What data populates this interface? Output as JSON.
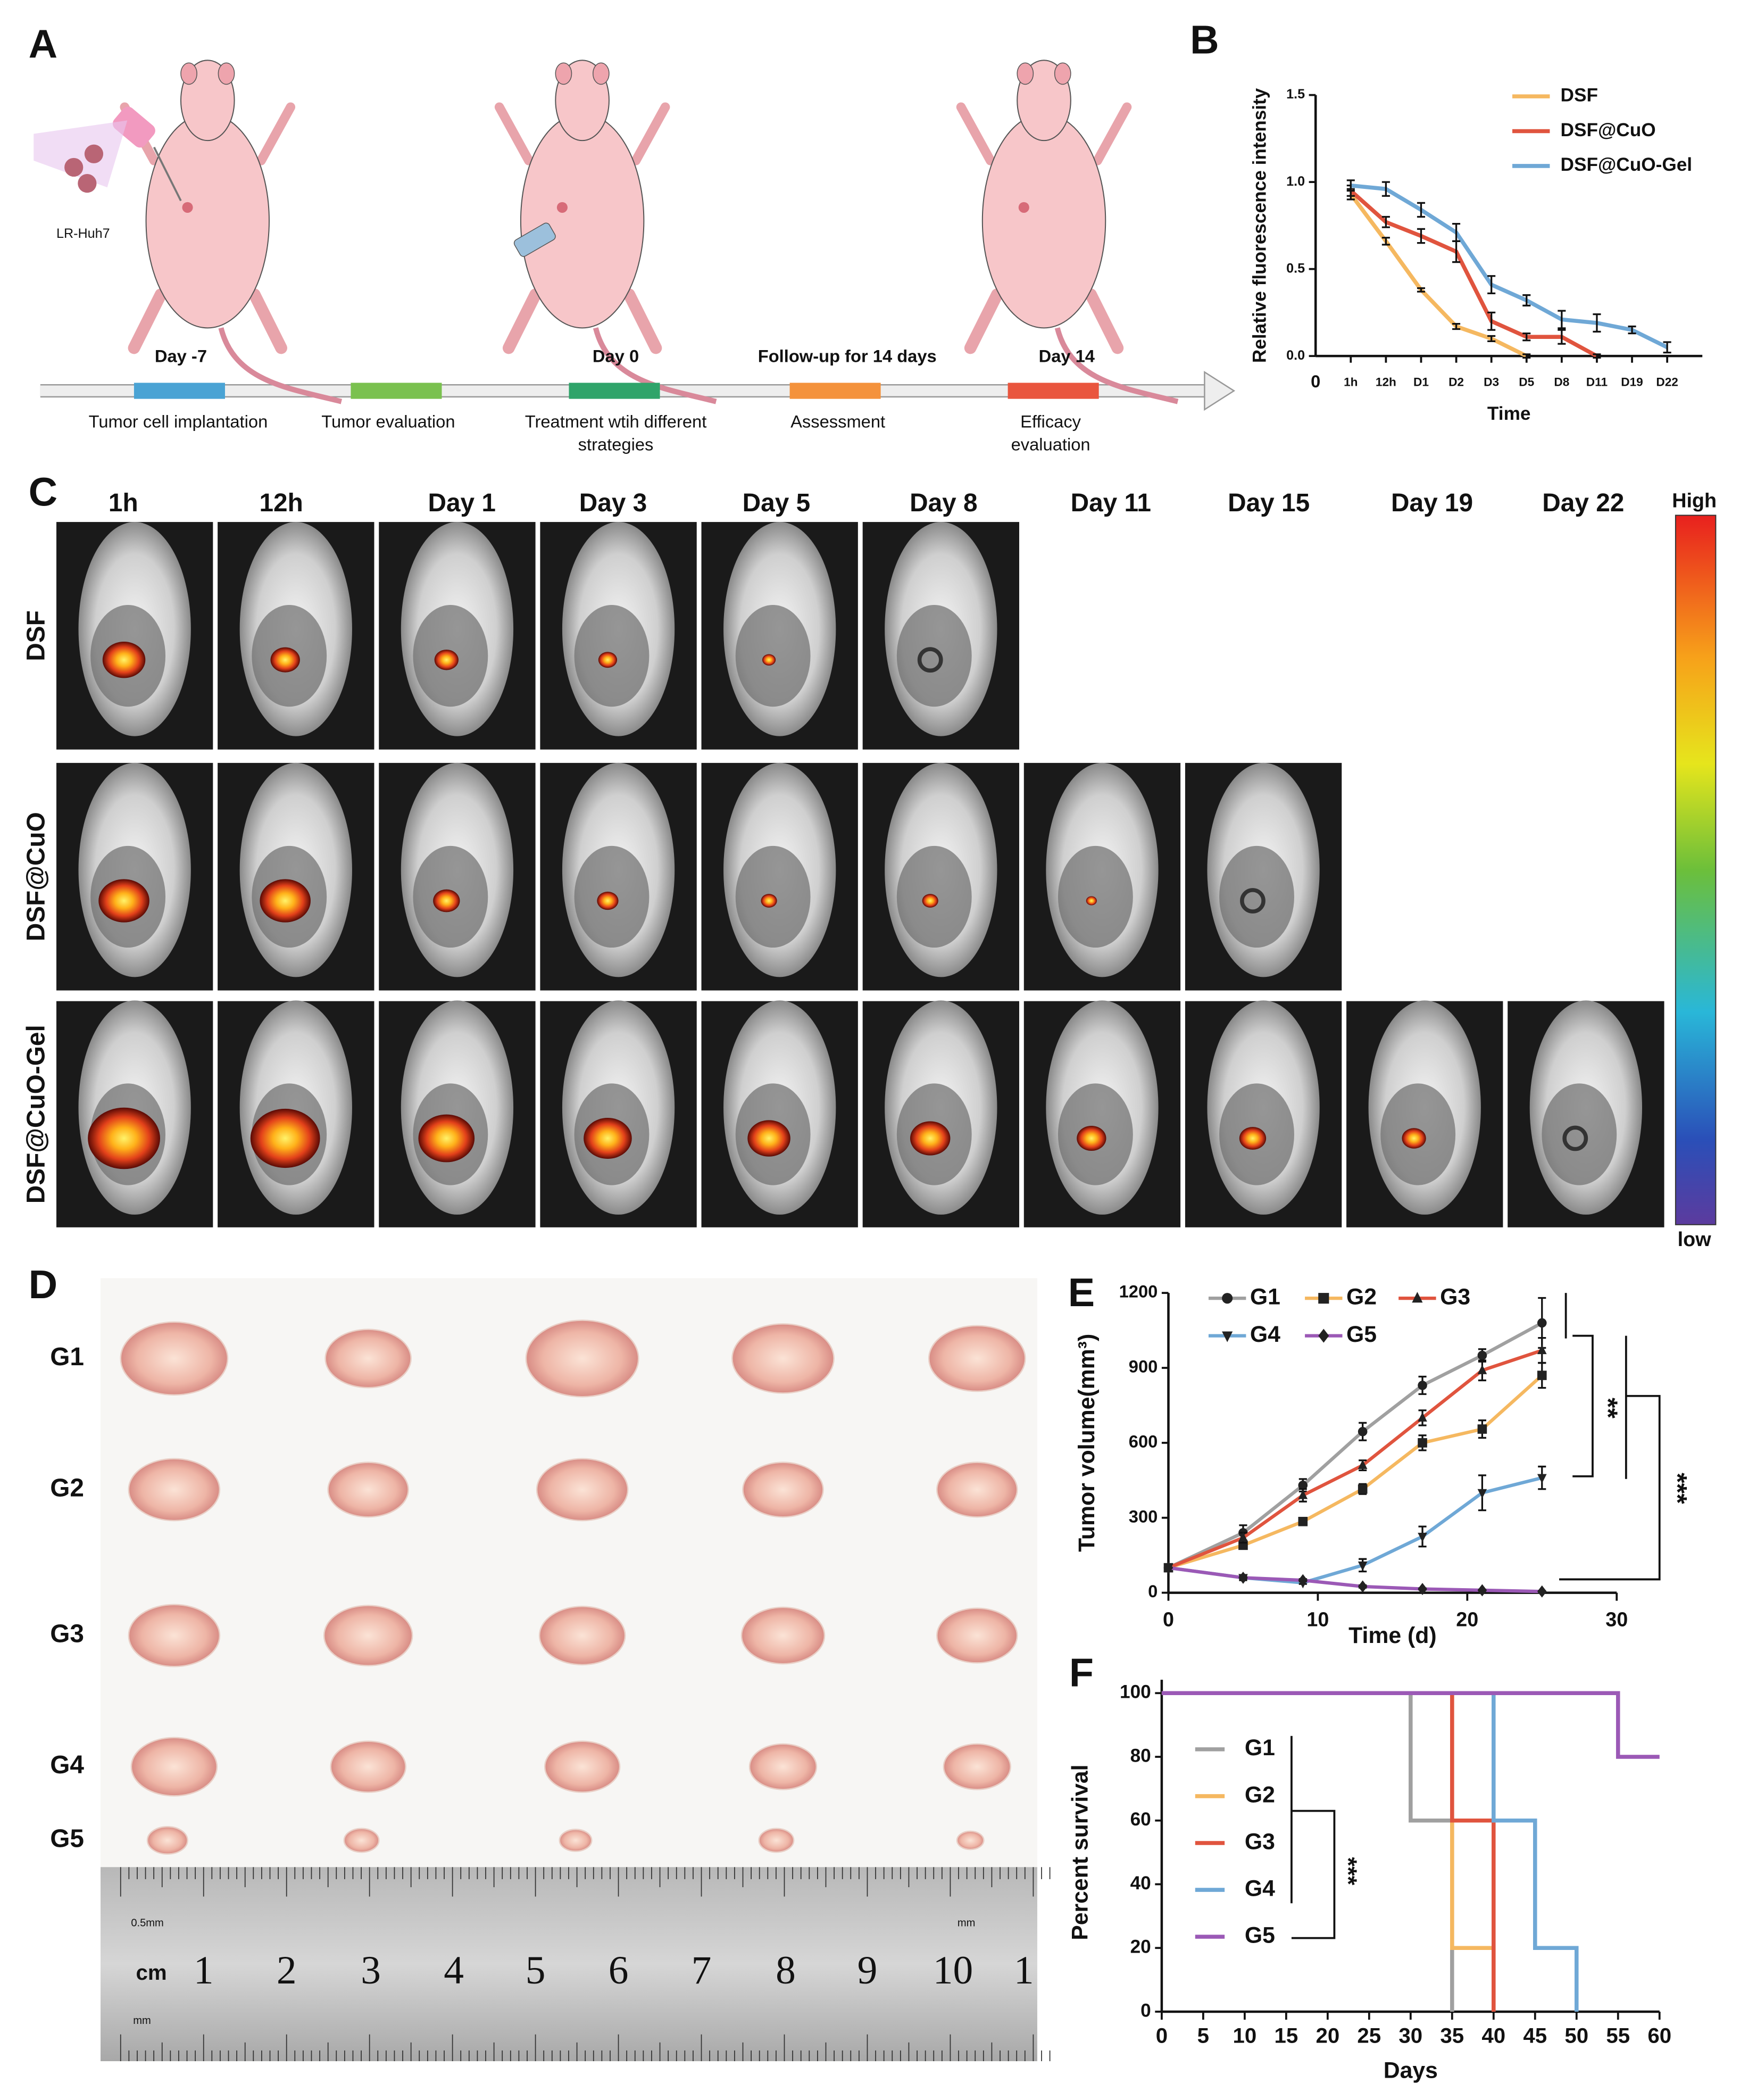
{
  "panel_labels": [
    "A",
    "B",
    "C",
    "D",
    "E",
    "F"
  ],
  "panel_a": {
    "cell_line": "LR-Huh7",
    "milestones": [
      "Day -7",
      "Day 0",
      "Follow-up for 14 days",
      "Day 14"
    ],
    "steps": [
      [
        "Tumor cell implantation"
      ],
      [
        "Tumor evaluation"
      ],
      [
        "Treatment wtih different",
        "strategies"
      ],
      [
        "Assessment"
      ],
      [
        "Efficacy",
        "evaluation"
      ]
    ]
  },
  "panel_c": {
    "timepoints": [
      "1h",
      "12h",
      "Day 1",
      "Day 3",
      "Day 5",
      "Day 8",
      "Day 11",
      "Day 15",
      "Day 19",
      "Day 22"
    ],
    "groups": [
      "DSF",
      "DSF@CuO",
      "DSF@CuO-Gel"
    ],
    "scale_high": "High",
    "scale_low": "low"
  },
  "panel_d": {
    "groups": [
      "G1",
      "G2",
      "G3",
      "G4",
      "G5"
    ],
    "ruler_unit": "cm",
    "ruler_numbers": [
      "1",
      "2",
      "3",
      "4",
      "5",
      "6",
      "7",
      "8",
      "9",
      "10",
      "1"
    ],
    "ruler_marks": [
      "0.5mm",
      "mm",
      "mm"
    ]
  },
  "chart_data": [
    {
      "type": "line",
      "xlabel": "Time",
      "ylabel": "Relative fluorescence intensity",
      "categories": [
        "0",
        "1h",
        "12h",
        "D1",
        "D2",
        "D3",
        "D5",
        "D8",
        "D11",
        "D19",
        "D22"
      ],
      "ylim": [
        0,
        1.5
      ],
      "yticks": [
        {
          "value": 0,
          "label": "0.0"
        },
        0.5,
        {
          "value": 1,
          "label": "1.0"
        },
        1.5
      ],
      "legend": "upper right",
      "series": [
        {
          "name": "DSF",
          "color": "#f5b860",
          "values": [
            null,
            0.93,
            0.66,
            0.38,
            0.17,
            0.1,
            0.0,
            null,
            null,
            null,
            null
          ],
          "errors": [
            null,
            0.03,
            0.02,
            0.01,
            0.015,
            0.015,
            0.01,
            null,
            null,
            null,
            null
          ]
        },
        {
          "name": "DSF@CuO",
          "color": "#e0543e",
          "values": [
            null,
            0.95,
            0.77,
            0.69,
            0.6,
            0.2,
            0.11,
            0.11,
            0.0,
            null,
            null
          ],
          "errors": [
            null,
            0.03,
            0.03,
            0.04,
            0.06,
            0.05,
            0.02,
            0.04,
            0.01,
            null,
            null
          ]
        },
        {
          "name": "DSF@CuO-Gel",
          "color": "#6fa8d6",
          "values": [
            null,
            0.98,
            0.96,
            0.84,
            0.71,
            0.41,
            0.32,
            0.21,
            0.19,
            0.15,
            0.05
          ],
          "errors": [
            null,
            0.03,
            0.04,
            0.04,
            0.05,
            0.05,
            0.03,
            0.05,
            0.05,
            0.02,
            0.03
          ]
        }
      ]
    },
    {
      "type": "line",
      "xlabel": "Time (d)",
      "ylabel": "Tumor volume(mm³)",
      "xlim": [
        0,
        30
      ],
      "ylim": [
        0,
        1200
      ],
      "xticks": [
        0,
        10,
        20,
        30
      ],
      "yticks": [
        0,
        300,
        600,
        900,
        1200
      ],
      "legend": "upper left",
      "marker_color": "#222",
      "annotations": [
        "**",
        "***"
      ],
      "x": [
        0,
        5,
        9,
        13,
        17,
        21,
        25
      ],
      "series": [
        {
          "name": "G1",
          "color": "#a0a0a0",
          "marker": "circle",
          "values": [
            100,
            240,
            430,
            645,
            830,
            950,
            1080
          ],
          "errors": [
            0,
            30,
            25,
            35,
            35,
            25,
            100
          ]
        },
        {
          "name": "G2",
          "color": "#f5b860",
          "marker": "square",
          "values": [
            100,
            190,
            285,
            415,
            600,
            655,
            870
          ],
          "errors": [
            0,
            15,
            15,
            20,
            30,
            35,
            50
          ]
        },
        {
          "name": "G3",
          "color": "#e0543e",
          "marker": "triangle-up",
          "values": [
            100,
            220,
            390,
            510,
            700,
            890,
            970
          ],
          "errors": [
            0,
            20,
            25,
            20,
            30,
            40,
            50
          ]
        },
        {
          "name": "G4",
          "color": "#6fa8d6",
          "marker": "triangle-down",
          "values": [
            100,
            60,
            40,
            110,
            225,
            400,
            460
          ],
          "errors": [
            0,
            10,
            5,
            25,
            40,
            70,
            45
          ]
        },
        {
          "name": "G5",
          "color": "#9b59b6",
          "marker": "diamond",
          "values": [
            100,
            60,
            50,
            25,
            15,
            10,
            5
          ],
          "errors": [
            0,
            5,
            5,
            5,
            3,
            2,
            2
          ]
        }
      ]
    },
    {
      "type": "step",
      "xlabel": "Days",
      "ylabel": "Percent survival",
      "xlim": [
        0,
        60
      ],
      "ylim": [
        0,
        100
      ],
      "xticks": [
        0,
        5,
        10,
        15,
        20,
        25,
        30,
        35,
        40,
        45,
        50,
        55,
        60
      ],
      "yticks": [
        0,
        20,
        40,
        60,
        80,
        100
      ],
      "legend": "center left",
      "annotations": [
        "***"
      ],
      "series": [
        {
          "name": "G1",
          "color": "#a0a0a0",
          "x": [
            0,
            30,
            35
          ],
          "values": [
            100,
            60,
            0
          ]
        },
        {
          "name": "G2",
          "color": "#f5b860",
          "x": [
            0,
            35,
            40
          ],
          "values": [
            100,
            20,
            0
          ]
        },
        {
          "name": "G3",
          "color": "#e0543e",
          "x": [
            0,
            35,
            40
          ],
          "values": [
            100,
            60,
            0
          ]
        },
        {
          "name": "G4",
          "color": "#6fa8d6",
          "x": [
            0,
            40,
            45,
            50
          ],
          "values": [
            100,
            60,
            20,
            0
          ]
        },
        {
          "name": "G5",
          "color": "#9b59b6",
          "x": [
            0,
            55,
            60
          ],
          "values": [
            100,
            80,
            80
          ]
        }
      ]
    }
  ]
}
